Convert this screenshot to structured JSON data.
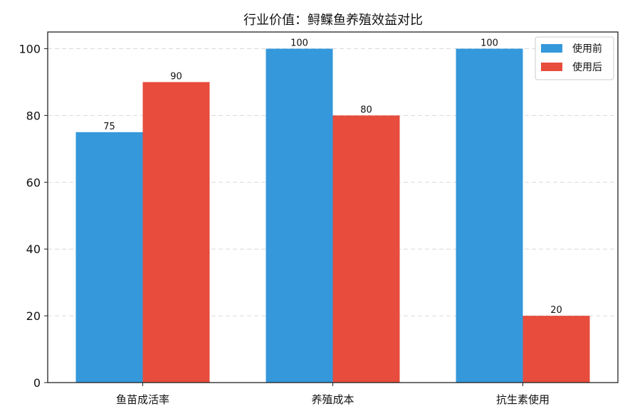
{
  "chart_data": {
    "type": "bar",
    "title": "行业价值：鲟鲽鱼养殖效益对比",
    "xlabel": "",
    "ylabel": "",
    "categories": [
      "鱼苗成活率",
      "养殖成本",
      "抗生素使用"
    ],
    "series": [
      {
        "name": "使用前",
        "values": [
          75,
          100,
          100
        ],
        "color": "#3498db"
      },
      {
        "name": "使用后",
        "values": [
          90,
          80,
          20
        ],
        "color": "#e74c3c"
      }
    ],
    "ylim": [
      0,
      105
    ],
    "yticks": [
      0,
      20,
      40,
      60,
      80,
      100
    ],
    "grid": "y-dashed",
    "legend_position": "top-right",
    "data_labels": true
  }
}
